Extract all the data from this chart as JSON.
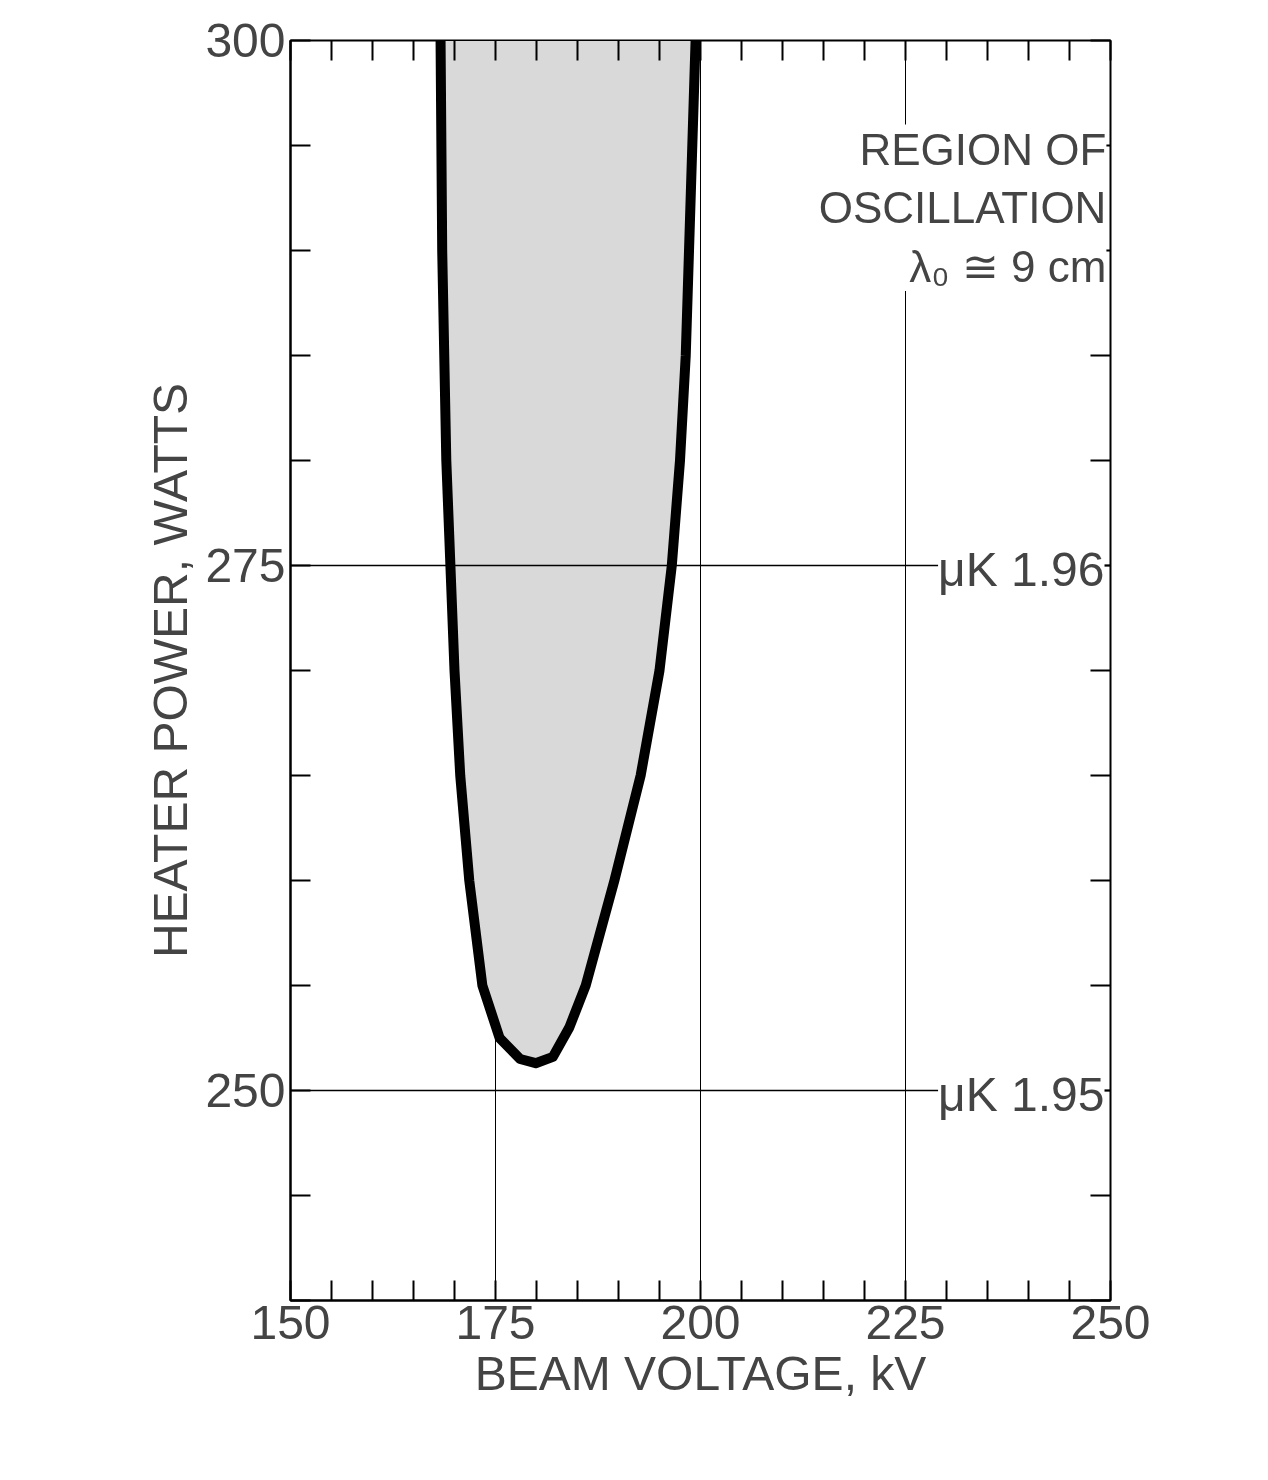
{
  "chart_data": {
    "type": "area",
    "xlabel": "BEAM VOLTAGE, kV",
    "ylabel": "HEATER POWER, WATTS",
    "xlim": [
      150,
      250
    ],
    "ylim": [
      240,
      300
    ],
    "xticks": [
      150,
      175,
      200,
      225,
      250
    ],
    "yticks": [
      250,
      275,
      300
    ],
    "grid": "x",
    "series": [
      {
        "color": "#000000",
        "x": [
          168.3,
          168.5,
          169.0,
          169.5,
          170.0,
          170.7,
          171.8,
          173.4,
          175.5,
          178.0,
          179.9,
          182.0,
          184.0,
          186.0,
          189.5,
          192.7,
          195.0,
          196.5,
          197.5,
          198.2,
          199.0,
          199.4
        ],
        "values": [
          300,
          290,
          280,
          275,
          270,
          265,
          260,
          255,
          252.5,
          251.5,
          251.3,
          251.6,
          253.0,
          255,
          260,
          265,
          270,
          275,
          280,
          285,
          295,
          300
        ]
      }
    ],
    "ref_lines": [
      {
        "axis": "y",
        "value": 275,
        "label": "μK 1.96"
      },
      {
        "axis": "y",
        "value": 250,
        "label": "μK 1.95"
      }
    ],
    "annotations": [
      "REGION OF\nOSCILLATION\nλ₀ ≅ 9 cm"
    ]
  }
}
